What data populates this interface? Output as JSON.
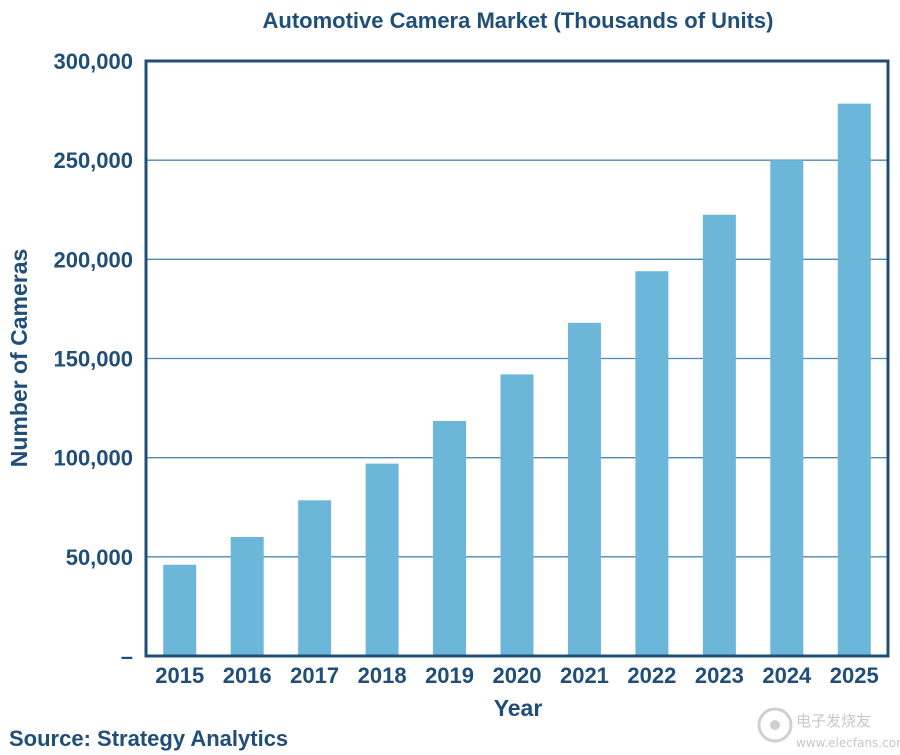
{
  "chart_data": {
    "type": "bar",
    "title": "Automotive Camera Market (Thousands of Units)",
    "xlabel": "Year",
    "ylabel": "Number of Cameras",
    "categories": [
      "2015",
      "2016",
      "2017",
      "2018",
      "2019",
      "2020",
      "2021",
      "2022",
      "2023",
      "2024",
      "2025"
    ],
    "values": [
      46000,
      60000,
      78500,
      97000,
      118500,
      142000,
      168000,
      194000,
      222500,
      250000,
      278500
    ],
    "ylim": [
      0,
      300000
    ],
    "yticks": [
      0,
      50000,
      100000,
      150000,
      200000,
      250000,
      300000
    ],
    "ytick_labels": [
      "–",
      "50,000",
      "100,000",
      "150,000",
      "200,000",
      "250,000",
      "300,000"
    ],
    "grid": true,
    "legend": "none",
    "colors": {
      "bar": "#6bb6d9",
      "text": "#1f4e79",
      "frame": "#1f4e79",
      "grid": "#4d8ab5"
    }
  },
  "source": "Source: Strategy Analytics",
  "watermark": {
    "text": "电子发烧友",
    "url": "www.elecfans.com"
  }
}
